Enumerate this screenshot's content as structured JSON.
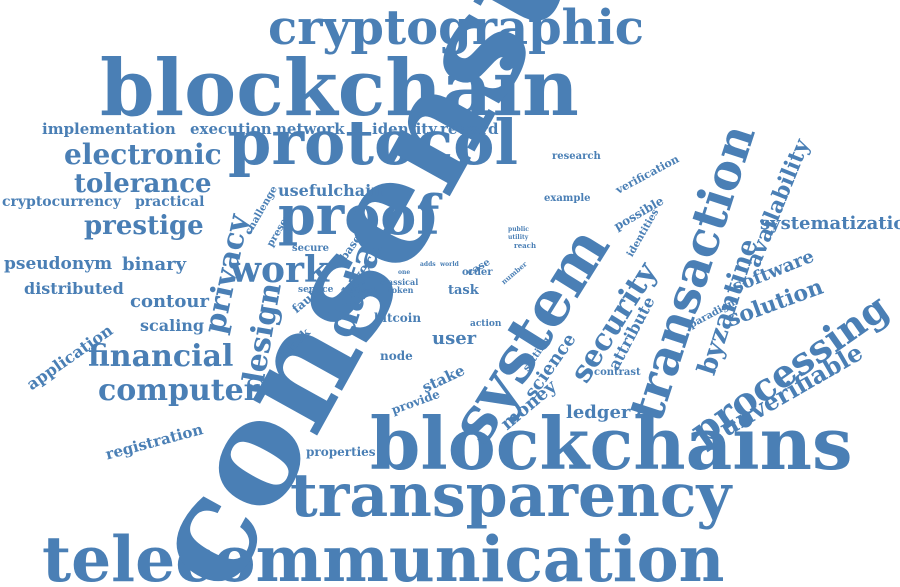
{
  "colors": {
    "word": "#4a7fb5",
    "background": "#ffffff"
  },
  "words": [
    "consensus",
    "blockchain",
    "blockchains",
    "telecommunication",
    "transparency",
    "cryptographic",
    "protocol",
    "proof",
    "system",
    "transaction",
    "processing",
    "security",
    "data",
    "design",
    "work",
    "privacy",
    "electronic",
    "tolerance",
    "prestige",
    "financial",
    "computer",
    "byzantine",
    "unverifiable",
    "availability",
    "systematization",
    "solution",
    "software",
    "implementation",
    "execution",
    "network",
    "identity",
    "reward",
    "usefulchain",
    "cryptocurrency",
    "practical",
    "pseudonym",
    "binary",
    "distributed",
    "contour",
    "scaling",
    "application",
    "registration",
    "ledger",
    "money",
    "science",
    "attribute",
    "stake",
    "user",
    "provide",
    "node",
    "bitcoin",
    "properties",
    "research",
    "verification",
    "possible",
    "example",
    "identities",
    "paradigm",
    "contrast",
    "setting",
    "action",
    "challenge",
    "present",
    "secure",
    "base",
    "layer",
    "fault",
    "block",
    "service",
    "attack",
    "token",
    "task",
    "case",
    "order",
    "number",
    "reach",
    "public",
    "utility",
    "world",
    "one",
    "adds",
    "classical",
    "associate"
  ]
}
